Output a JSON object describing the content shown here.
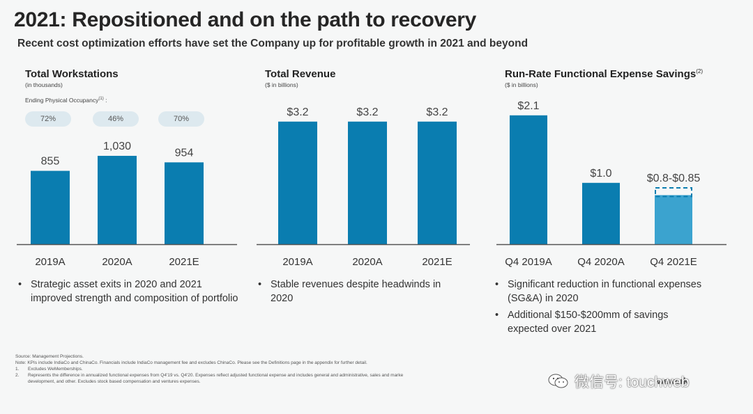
{
  "header": {
    "title": "2021: Repositioned and on the path to recovery",
    "subtitle": "Recent cost optimization efforts have set the Company up for profitable growth in 2021 and beyond"
  },
  "colors": {
    "bar": "#0a7db0",
    "bar_light": "#3ba3cf",
    "axis": "#555555",
    "pill_bg": "#dde9ef"
  },
  "panels": [
    {
      "title": "Total Workstations",
      "subtitle": "(in thousands)",
      "occupancy_label": "Ending Physical Occupancy",
      "occupancy_sup": "(1)",
      "occupancy": [
        "72%",
        "46%",
        "70%"
      ],
      "bullets": [
        "Strategic asset exits in 2020 and 2021 improved strength and composition of portfolio"
      ]
    },
    {
      "title": "Total Revenue",
      "subtitle": "($ in billions)",
      "bullets": [
        "Stable revenues despite headwinds in 2020"
      ]
    },
    {
      "title": "Run-Rate Functional Expense Savings",
      "title_sup": "(2)",
      "subtitle": "($ in billions)",
      "bullets": [
        "Significant reduction in functional expenses (SG&A) in 2020",
        "Additional $150-$200mm of savings expected over 2021"
      ]
    }
  ],
  "chart_data": [
    {
      "type": "bar",
      "title": "Total Workstations",
      "ylabel": "(in thousands)",
      "categories": [
        "2019A",
        "2020A",
        "2021E"
      ],
      "values": [
        855,
        1030,
        954
      ],
      "data_labels": [
        "855",
        "1,030",
        "954"
      ],
      "ylim": [
        0,
        1500
      ]
    },
    {
      "type": "bar",
      "title": "Total Revenue",
      "ylabel": "($ in billions)",
      "categories": [
        "2019A",
        "2020A",
        "2021E"
      ],
      "values": [
        3.2,
        3.2,
        3.2
      ],
      "data_labels": [
        "$3.2",
        "$3.2",
        "$3.2"
      ],
      "ylim": [
        0,
        3.94
      ]
    },
    {
      "type": "bar",
      "title": "Run-Rate Functional Expense Savings",
      "ylabel": "($ in billions)",
      "categories": [
        "Q4 2019A",
        "Q4 2020A",
        "Q4 2021E"
      ],
      "values": [
        2.1,
        1.0,
        0.8
      ],
      "range_high": [
        null,
        null,
        0.85
      ],
      "data_labels": [
        "$2.1",
        "$1.0",
        "$0.8-$0.85"
      ],
      "ylim": [
        0,
        2.46
      ]
    }
  ],
  "footnotes": {
    "source": "Source: Management Projections.",
    "note": "Note: KPIs include IndiaCo and ChinaCo. Financials include IndiaCo management fee and excludes ChinaCo. Please see the Definitions page in the appendix for further detail.",
    "items": [
      {
        "num": "1.",
        "text": "Excludes WeMemberships."
      },
      {
        "num": "2.",
        "text": "Represents the difference in annualized functional expenses from Q4'19 vs. Q4'20. Expenses reflect adjusted functional expense and includes general and administrative, sales and marke"
      },
      {
        "num": "",
        "text": "development, and other. Excludes stock based compensation and ventures expenses."
      }
    ]
  },
  "watermark": {
    "text": "微信号: touchweb",
    "icon": "wechat-icon"
  },
  "brand": {
    "text": "wework"
  }
}
